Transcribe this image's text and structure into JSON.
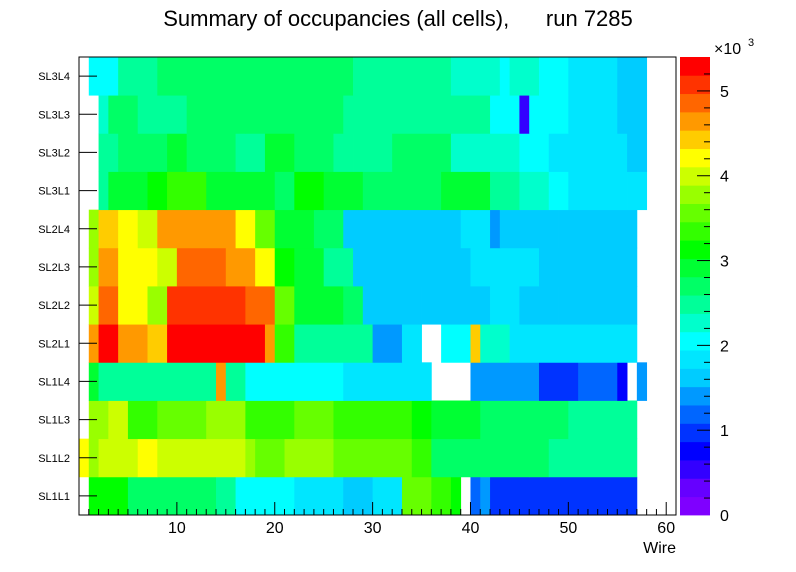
{
  "chart_data": {
    "type": "heatmap",
    "title": "Summary of occupancies (all cells),      run 7285",
    "xlabel": "Wire",
    "ylabel": "",
    "xlim": [
      0,
      61
    ],
    "xticks": [
      "10",
      "20",
      "30",
      "40",
      "50",
      "60"
    ],
    "xtick_values": [
      10,
      20,
      30,
      40,
      50,
      60
    ],
    "rows": [
      "SL1L1",
      "SL1L2",
      "SL1L3",
      "SL1L4",
      "SL2L1",
      "SL2L2",
      "SL2L3",
      "SL2L4",
      "SL3L1",
      "SL3L2",
      "SL3L3",
      "SL3L4"
    ],
    "zlim": [
      0,
      5400
    ],
    "zticks": [
      "0",
      "1",
      "2",
      "3",
      "4",
      "5"
    ],
    "zexponent_base": "×10",
    "zexponent_power": "3",
    "palette": [
      "#7f00ff",
      "#6600ff",
      "#3300ff",
      "#0000ff",
      "#0033ff",
      "#0066ff",
      "#0099ff",
      "#00ccff",
      "#00e6ff",
      "#00ffff",
      "#00ffcc",
      "#00ff99",
      "#00ff66",
      "#00ff33",
      "#00ff00",
      "#33ff00",
      "#66ff00",
      "#99ff00",
      "#ccff00",
      "#ffff00",
      "#ffcc00",
      "#ff9900",
      "#ff6600",
      "#ff3300",
      "#ff0000"
    ],
    "row_segments": {
      "SL1L1": [
        [
          1,
          2,
          3200
        ],
        [
          2,
          5,
          3100
        ],
        [
          5,
          7,
          2800
        ],
        [
          7,
          12,
          2700
        ],
        [
          12,
          14,
          2600
        ],
        [
          14,
          16,
          2400
        ],
        [
          16,
          22,
          2000
        ],
        [
          22,
          27,
          1900
        ],
        [
          27,
          30,
          1700
        ],
        [
          30,
          33,
          1900
        ],
        [
          33,
          36,
          3600
        ],
        [
          36,
          38,
          3400
        ],
        [
          38,
          39,
          3200
        ],
        [
          39,
          40,
          null
        ],
        [
          40,
          41,
          1200
        ],
        [
          41,
          42,
          1400
        ],
        [
          42,
          57,
          1000
        ],
        [
          57,
          62,
          null
        ]
      ],
      "SL1L2": [
        [
          0,
          1,
          4200
        ],
        [
          1,
          2,
          3800
        ],
        [
          2,
          6,
          4000
        ],
        [
          6,
          8,
          4300
        ],
        [
          8,
          17,
          4000
        ],
        [
          17,
          18,
          3800
        ],
        [
          18,
          21,
          3600
        ],
        [
          21,
          26,
          3700
        ],
        [
          26,
          34,
          3600
        ],
        [
          34,
          36,
          3300
        ],
        [
          36,
          46,
          2800
        ],
        [
          46,
          48,
          2600
        ],
        [
          48,
          57,
          2400
        ],
        [
          57,
          62,
          null
        ]
      ],
      "SL1L3": [
        [
          1,
          3,
          3800
        ],
        [
          3,
          5,
          3900
        ],
        [
          5,
          8,
          3400
        ],
        [
          8,
          13,
          3600
        ],
        [
          13,
          17,
          3700
        ],
        [
          17,
          22,
          3400
        ],
        [
          22,
          26,
          3500
        ],
        [
          26,
          34,
          3300
        ],
        [
          34,
          36,
          3100
        ],
        [
          36,
          41,
          2900
        ],
        [
          41,
          50,
          2700
        ],
        [
          50,
          57,
          2400
        ],
        [
          57,
          62,
          null
        ]
      ],
      "SL1L4": [
        [
          1,
          2,
          2900
        ],
        [
          2,
          14,
          2400
        ],
        [
          14,
          15,
          4700
        ],
        [
          15,
          17,
          2400
        ],
        [
          17,
          27,
          2100
        ],
        [
          27,
          30,
          1900
        ],
        [
          30,
          36,
          1800
        ],
        [
          36,
          40,
          null
        ],
        [
          40,
          47,
          1300
        ],
        [
          47,
          51,
          1000
        ],
        [
          51,
          55,
          1200
        ],
        [
          55,
          56,
          700
        ],
        [
          56,
          57,
          null
        ],
        [
          57,
          58,
          1300
        ],
        [
          58,
          62,
          null
        ]
      ],
      "SL2L1": [
        [
          1,
          2,
          4600
        ],
        [
          2,
          4,
          5200
        ],
        [
          4,
          7,
          4700
        ],
        [
          7,
          9,
          4400
        ],
        [
          9,
          19,
          5400
        ],
        [
          19,
          20,
          4600
        ],
        [
          20,
          22,
          3300
        ],
        [
          22,
          30,
          2400
        ],
        [
          30,
          33,
          1400
        ],
        [
          33,
          35,
          1900
        ],
        [
          35,
          37,
          null
        ],
        [
          37,
          40,
          2100
        ],
        [
          40,
          41,
          4500
        ],
        [
          41,
          44,
          2300
        ],
        [
          44,
          57,
          1900
        ],
        [
          57,
          62,
          null
        ]
      ],
      "SL2L2": [
        [
          1,
          2,
          3900
        ],
        [
          2,
          4,
          4800
        ],
        [
          4,
          7,
          4300
        ],
        [
          7,
          9,
          3800
        ],
        [
          9,
          17,
          5000
        ],
        [
          17,
          20,
          4800
        ],
        [
          20,
          22,
          3500
        ],
        [
          22,
          27,
          3000
        ],
        [
          27,
          29,
          2700
        ],
        [
          29,
          35,
          1600
        ],
        [
          35,
          38,
          1700
        ],
        [
          38,
          42,
          1600
        ],
        [
          42,
          45,
          1800
        ],
        [
          45,
          49,
          1600
        ],
        [
          49,
          52,
          1700
        ],
        [
          52,
          57,
          1700
        ],
        [
          57,
          62,
          null
        ]
      ],
      "SL2L3": [
        [
          1,
          2,
          3700
        ],
        [
          2,
          4,
          4600
        ],
        [
          4,
          6,
          4300
        ],
        [
          6,
          8,
          4200
        ],
        [
          8,
          10,
          3900
        ],
        [
          10,
          15,
          4900
        ],
        [
          15,
          18,
          4700
        ],
        [
          18,
          20,
          4200
        ],
        [
          20,
          22,
          3200
        ],
        [
          22,
          25,
          2900
        ],
        [
          25,
          28,
          2500
        ],
        [
          28,
          40,
          1600
        ],
        [
          40,
          47,
          1800
        ],
        [
          47,
          57,
          1700
        ],
        [
          57,
          62,
          null
        ]
      ],
      "SL2L4": [
        [
          1,
          2,
          3700
        ],
        [
          2,
          4,
          4400
        ],
        [
          4,
          6,
          4200
        ],
        [
          6,
          8,
          3900
        ],
        [
          8,
          16,
          4600
        ],
        [
          16,
          18,
          4200
        ],
        [
          18,
          20,
          3600
        ],
        [
          20,
          24,
          2900
        ],
        [
          24,
          27,
          2600
        ],
        [
          27,
          39,
          1600
        ],
        [
          39,
          42,
          1800
        ],
        [
          42,
          43,
          1500
        ],
        [
          43,
          49,
          1700
        ],
        [
          49,
          57,
          1700
        ],
        [
          57,
          62,
          null
        ]
      ],
      "SL3L1": [
        [
          1,
          2,
          null
        ],
        [
          2,
          3,
          2500
        ],
        [
          3,
          7,
          3000
        ],
        [
          7,
          9,
          3100
        ],
        [
          9,
          13,
          3300
        ],
        [
          13,
          20,
          3000
        ],
        [
          20,
          22,
          2800
        ],
        [
          22,
          25,
          3200
        ],
        [
          25,
          29,
          2900
        ],
        [
          29,
          33,
          2800
        ],
        [
          33,
          37,
          2600
        ],
        [
          37,
          42,
          2900
        ],
        [
          42,
          45,
          2500
        ],
        [
          45,
          48,
          2200
        ],
        [
          48,
          50,
          2000
        ],
        [
          50,
          56,
          1900
        ],
        [
          56,
          58,
          1900
        ],
        [
          58,
          62,
          null
        ]
      ],
      "SL3L2": [
        [
          1,
          2,
          null
        ],
        [
          2,
          4,
          2500
        ],
        [
          4,
          9,
          2700
        ],
        [
          9,
          11,
          2900
        ],
        [
          11,
          16,
          2700
        ],
        [
          16,
          19,
          2500
        ],
        [
          19,
          22,
          2900
        ],
        [
          22,
          26,
          2700
        ],
        [
          26,
          28,
          2500
        ],
        [
          28,
          32,
          2400
        ],
        [
          32,
          38,
          2700
        ],
        [
          38,
          45,
          2300
        ],
        [
          45,
          48,
          2100
        ],
        [
          48,
          50,
          1900
        ],
        [
          50,
          56,
          1800
        ],
        [
          56,
          58,
          1600
        ],
        [
          58,
          62,
          null
        ]
      ],
      "SL3L3": [
        [
          1,
          2,
          null
        ],
        [
          2,
          3,
          2300
        ],
        [
          3,
          6,
          2600
        ],
        [
          6,
          11,
          2500
        ],
        [
          11,
          17,
          2700
        ],
        [
          17,
          27,
          2600
        ],
        [
          27,
          38,
          2500
        ],
        [
          38,
          42,
          2400
        ],
        [
          42,
          44,
          2100
        ],
        [
          44,
          45,
          2000
        ],
        [
          45,
          46,
          600
        ],
        [
          46,
          50,
          2100
        ],
        [
          50,
          55,
          1800
        ],
        [
          55,
          58,
          1600
        ],
        [
          58,
          62,
          null
        ]
      ],
      "SL3L4": [
        [
          1,
          2,
          2000
        ],
        [
          2,
          4,
          2100
        ],
        [
          4,
          8,
          2500
        ],
        [
          8,
          14,
          2600
        ],
        [
          14,
          16,
          2800
        ],
        [
          16,
          28,
          2600
        ],
        [
          28,
          38,
          2500
        ],
        [
          38,
          43,
          2300
        ],
        [
          43,
          44,
          2000
        ],
        [
          44,
          47,
          2200
        ],
        [
          47,
          50,
          2100
        ],
        [
          50,
          55,
          1900
        ],
        [
          55,
          58,
          1700
        ],
        [
          58,
          62,
          null
        ]
      ]
    }
  }
}
